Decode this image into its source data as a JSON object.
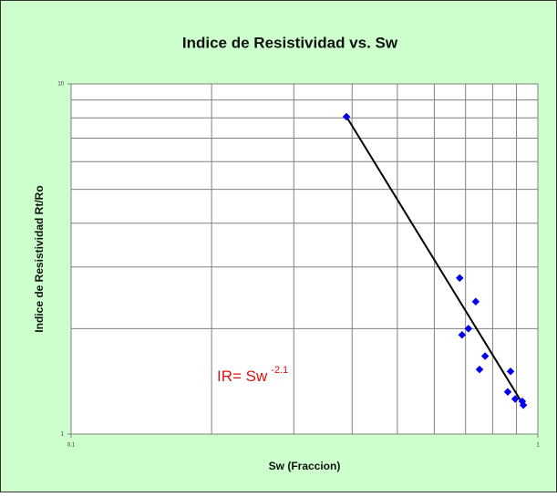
{
  "chart_data": {
    "type": "scatter",
    "title": "Indice de Resistividad vs. Sw",
    "x_label": "Sw (Fraccion)",
    "y_label": "Indice de Resistividad Rt/Ro",
    "log_x": true,
    "log_y": true,
    "grid": true,
    "xlim": [
      0.1,
      1
    ],
    "ylim": [
      1,
      10
    ],
    "xticks": [
      0.1,
      1
    ],
    "yticks": [
      1,
      10
    ],
    "xminor_ticks": [
      0.2,
      0.3,
      0.4,
      0.5,
      0.6,
      0.7,
      0.8,
      0.9
    ],
    "yminor_ticks": [
      2,
      3,
      4,
      5,
      6,
      7,
      8,
      9
    ],
    "series": [
      {
        "color": "#0000ee",
        "x": [
          0.389,
          0.68,
          0.736,
          0.71,
          0.688,
          0.771,
          0.75,
          0.874,
          0.862,
          0.894,
          0.926,
          0.931
        ],
        "values": [
          8.06,
          2.79,
          2.39,
          2.0,
          1.92,
          1.67,
          1.53,
          1.51,
          1.32,
          1.26,
          1.24,
          1.21
        ]
      }
    ],
    "trendline": {
      "color": "#000000",
      "x": [
        0.389,
        0.935
      ],
      "values": [
        8.06,
        1.2
      ]
    },
    "annotation": {
      "text": "IR= Sw",
      "exponent": "-2.1",
      "color": "#dd1111"
    }
  }
}
